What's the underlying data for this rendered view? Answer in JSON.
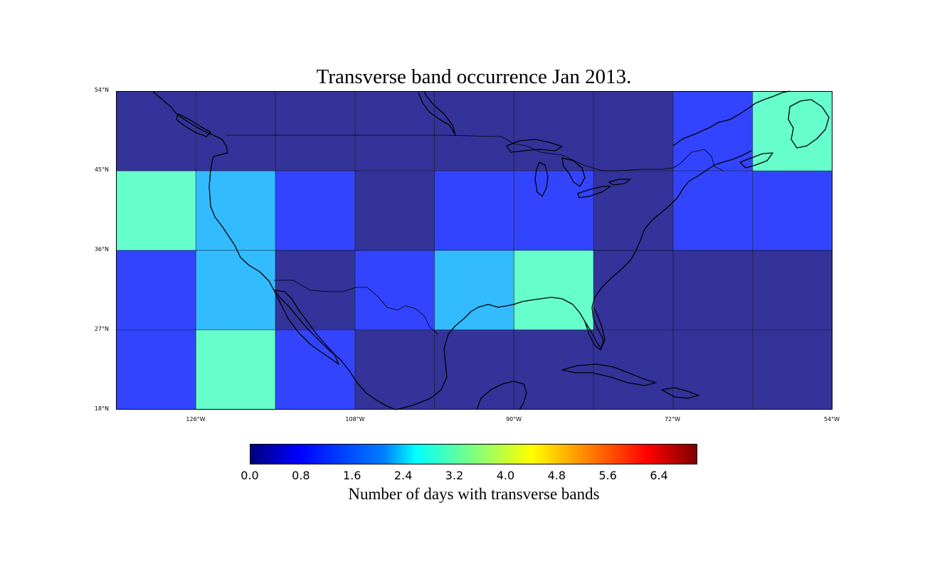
{
  "title": "Transverse band occurrence Jan 2013.",
  "lat_labels": [
    "54°N",
    "45°N",
    "36°N",
    "27°N",
    "18°N"
  ],
  "lon_labels": [
    "126°W",
    "108°W",
    "90°W",
    "72°W",
    "54°W"
  ],
  "colorbar": {
    "label": "Number of days with transverse bands",
    "ticks": [
      "0.0",
      "0.8",
      "1.6",
      "2.4",
      "3.2",
      "4.0",
      "4.8",
      "5.6",
      "6.4"
    ],
    "range": [
      0,
      7
    ],
    "colormap": "jet"
  },
  "chart_data": {
    "type": "heatmap",
    "title": "Transverse band occurrence Jan 2013.",
    "lon_range": [
      -135,
      -54
    ],
    "lat_range": [
      18,
      54
    ],
    "cell_size_deg": 9,
    "lon_edges": [
      -135,
      -126,
      -117,
      -108,
      -99,
      -90,
      -81,
      -72,
      -63,
      -54
    ],
    "lat_edges": [
      54,
      45,
      36,
      27,
      18
    ],
    "values": [
      [
        0,
        0,
        0,
        0,
        0,
        0,
        0,
        1,
        3
      ],
      [
        3,
        2,
        1,
        0,
        1,
        1,
        0,
        1,
        1
      ],
      [
        1,
        2,
        0,
        1,
        2,
        3,
        0,
        0,
        0
      ],
      [
        1,
        3,
        1,
        0,
        0,
        0,
        0,
        0,
        0
      ]
    ],
    "colors": {
      "0": "#333399",
      "1": "#3344ff",
      "2": "#33bbff",
      "3": "#66ffcc"
    },
    "colorbar_label": "Number of days with transverse bands"
  }
}
